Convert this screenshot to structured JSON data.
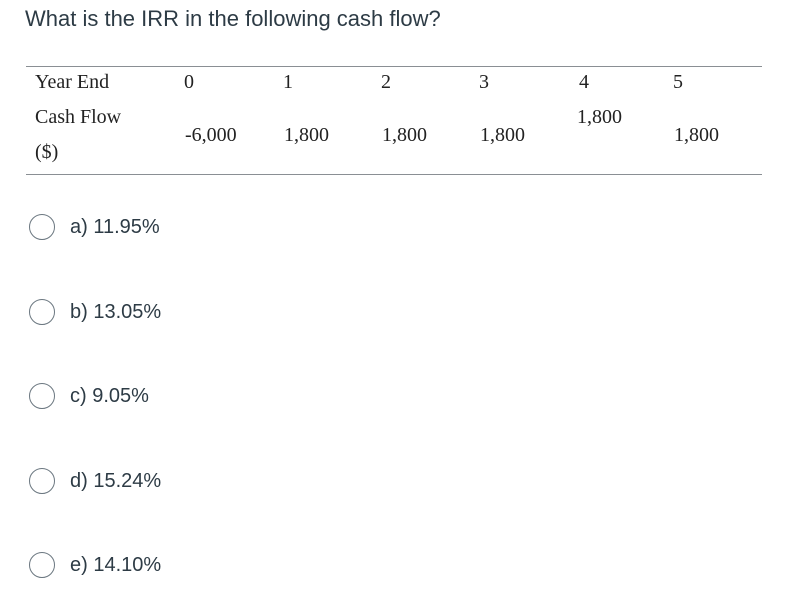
{
  "question": {
    "text": "What is the IRR in the following cash flow?"
  },
  "table": {
    "year_end_label": "Year End",
    "cash_flow_label": "Cash Flow",
    "currency_label": "($)",
    "years": [
      "0",
      "1",
      "2",
      "3",
      "4",
      "5"
    ],
    "cash_flows": [
      "-6,000",
      "1,800",
      "1,800",
      "1,800",
      "1,800",
      "1,800"
    ]
  },
  "options": [
    {
      "label": "a) 11.95%",
      "selected": false
    },
    {
      "label": "b) 13.05%",
      "selected": false
    },
    {
      "label": "c) 9.05%",
      "selected": false
    },
    {
      "label": "d) 15.24%",
      "selected": false
    },
    {
      "label": "e) 14.10%",
      "selected": false
    }
  ]
}
